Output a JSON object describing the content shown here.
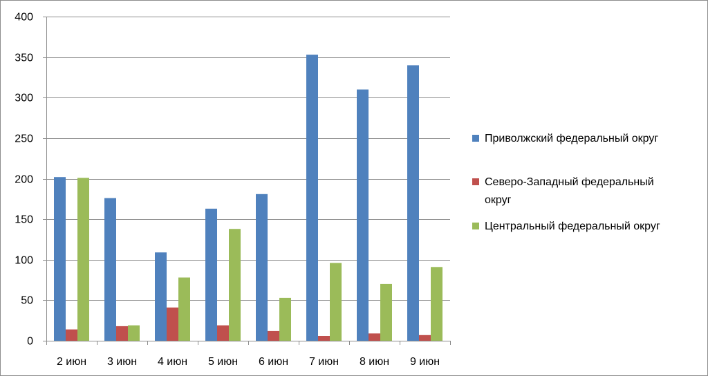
{
  "chart_data": {
    "type": "bar",
    "categories": [
      "2 июн",
      "3 июн",
      "4 июн",
      "5 июн",
      "6 июн",
      "7 июн",
      "8 июн",
      "9 июн"
    ],
    "series": [
      {
        "name": "Приволжский федеральный округ",
        "legend_lines": [
          "Приволжский федеральный округ"
        ],
        "color": "#4f81bd",
        "values": [
          202,
          176,
          109,
          163,
          181,
          353,
          310,
          340
        ]
      },
      {
        "name": "Северо-Западный федеральный округ",
        "legend_lines": [
          "Северо-Западный федеральный",
          "округ"
        ],
        "color": "#c0504d",
        "values": [
          14,
          18,
          41,
          19,
          12,
          6,
          9,
          7
        ]
      },
      {
        "name": "Центральный федеральный округ",
        "legend_lines": [
          "Центральный федеральный округ"
        ],
        "color": "#9bbb59",
        "values": [
          201,
          19,
          78,
          138,
          53,
          96,
          70,
          91
        ]
      }
    ],
    "ylim": [
      0,
      400
    ],
    "yticks": [
      0,
      50,
      100,
      150,
      200,
      250,
      300,
      350,
      400
    ],
    "grid": true,
    "legend_position": "right",
    "title": "",
    "xlabel": "",
    "ylabel": ""
  }
}
